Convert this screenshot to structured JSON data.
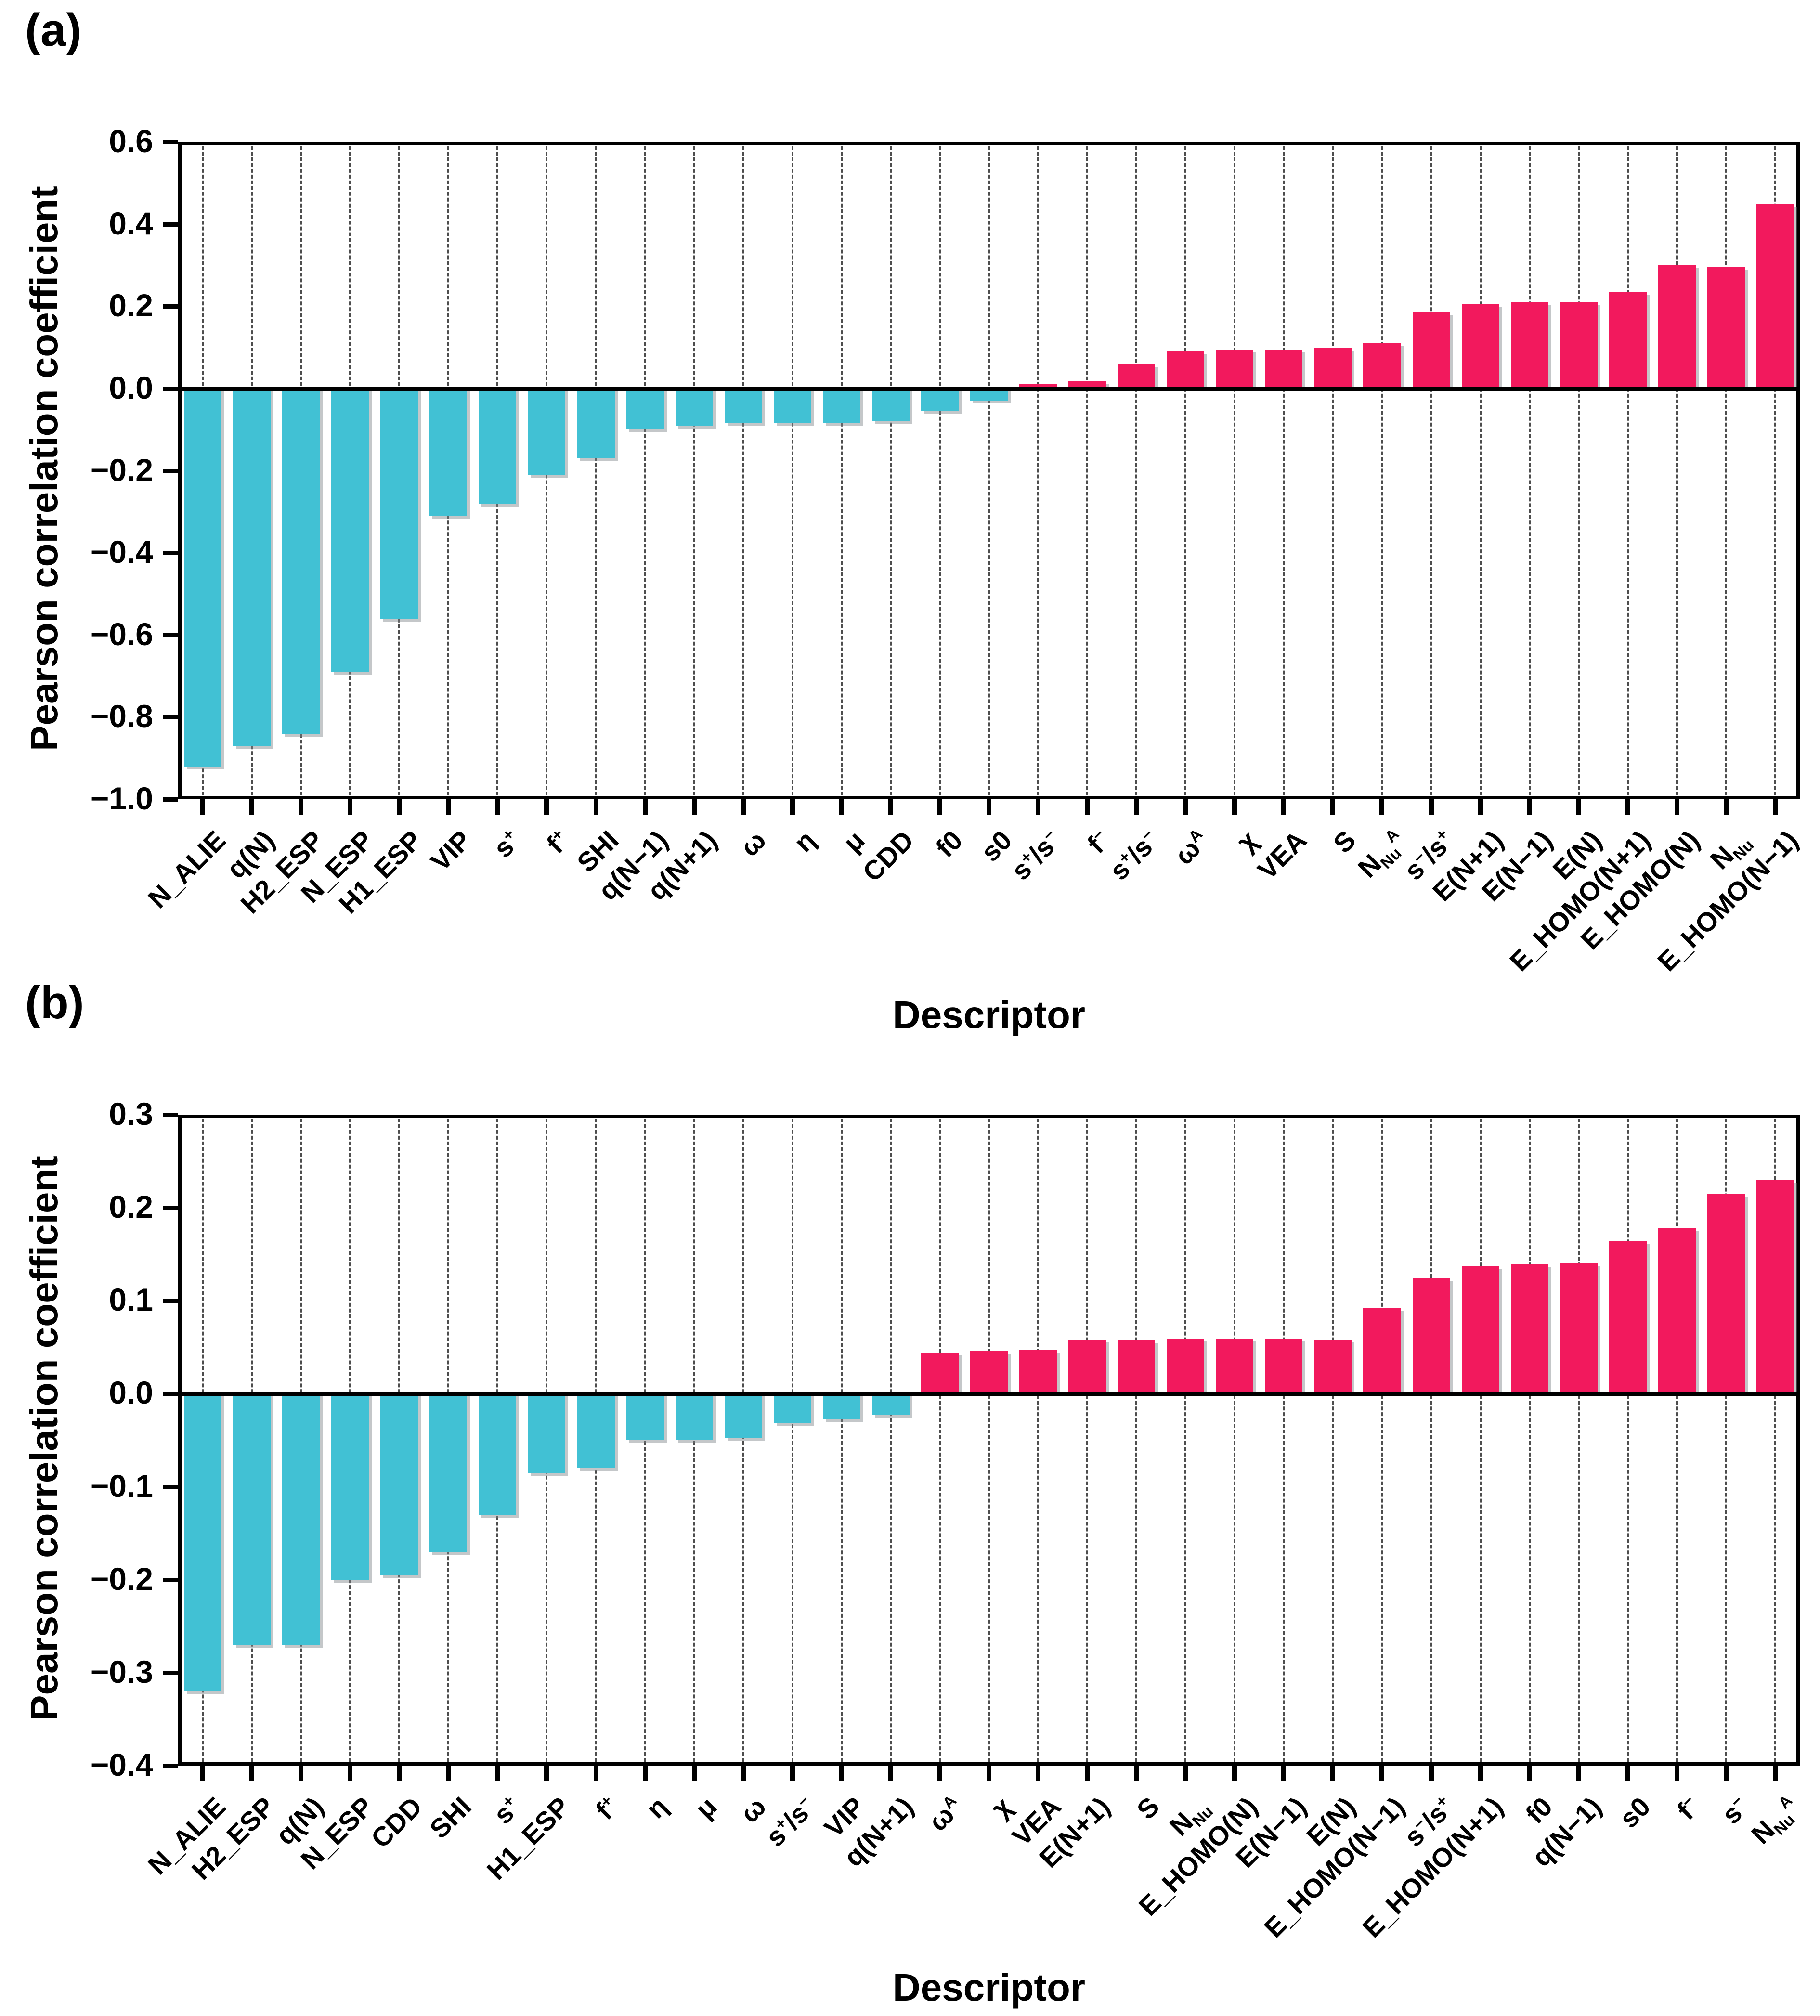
{
  "figure": {
    "background": "#ffffff",
    "grid_color": "#4d4d4d",
    "axis_color": "#000000"
  },
  "chart_data": [
    {
      "type": "bar",
      "panel": "(a)",
      "ylabel": "Pearson correlation coefficient",
      "xlabel": "Descriptor",
      "ylim": [
        -1.0,
        0.6
      ],
      "yticks": [
        "0.6",
        "0.4",
        "0.2",
        "0.0",
        "−0.2",
        "−0.4",
        "−0.6",
        "−0.8",
        "−1.0"
      ],
      "grid": true,
      "legend": "none",
      "positive_color": "#F2195D",
      "negative_color": "#41C1D4",
      "categories": [
        "N_ALIE",
        "q(N)",
        "H2_ESP",
        "N_ESP",
        "H1_ESP",
        "VIP",
        "s+",
        "f+",
        "SHI",
        "q(N−1)",
        "q(N+1)",
        "ω",
        "η",
        "μ",
        "CDD",
        "f0",
        "s0",
        "s+/s−",
        "f−",
        "s+/s−",
        "ω^A",
        "χ",
        "VEA",
        "S",
        "N_Nu^A",
        "s−/s+",
        "E(N+1)",
        "E(N−1)",
        "E(N)",
        "E_HOMO(N+1)",
        "E_HOMO(N)",
        "N_Nu",
        "E_HOMO(N−1)"
      ],
      "values": [
        -0.92,
        -0.87,
        -0.84,
        -0.69,
        -0.56,
        -0.31,
        -0.28,
        -0.21,
        -0.17,
        -0.1,
        -0.09,
        -0.085,
        -0.085,
        -0.085,
        -0.08,
        -0.055,
        -0.03,
        0.012,
        0.018,
        0.06,
        0.09,
        0.095,
        0.095,
        0.1,
        0.11,
        0.185,
        0.205,
        0.21,
        0.21,
        0.235,
        0.3,
        0.295,
        0.45
      ]
    },
    {
      "type": "bar",
      "panel": "(b)",
      "ylabel": "Pearson correlation coefficient",
      "xlabel": "Descriptor",
      "ylim": [
        -0.4,
        0.3
      ],
      "yticks": [
        "0.3",
        "0.2",
        "0.1",
        "0.0",
        "−0.1",
        "−0.2",
        "−0.3",
        "−0.4"
      ],
      "grid": true,
      "legend": "none",
      "positive_color": "#F2195D",
      "negative_color": "#41C1D4",
      "categories": [
        "N_ALIE",
        "H2_ESP",
        "q(N)",
        "N_ESP",
        "CDD",
        "SHI",
        "s+",
        "H1_ESP",
        "f+",
        "η",
        "μ",
        "ω",
        "s+/s−",
        "VIP",
        "q(N+1)",
        "ω^A",
        "χ",
        "VEA",
        "E(N+1)",
        "S",
        "N_Nu",
        "E_HOMO(N)",
        "E(N−1)",
        "E(N)",
        "E_HOMO(N−1)",
        "s−/s+",
        "E_HOMO(N+1)",
        "f0",
        "q(N−1)",
        "s0",
        "f−",
        "s−",
        "N_Nu^A"
      ],
      "values": [
        -0.32,
        -0.27,
        -0.27,
        -0.2,
        -0.195,
        -0.17,
        -0.13,
        -0.085,
        -0.08,
        -0.05,
        -0.05,
        -0.048,
        -0.032,
        -0.027,
        -0.023,
        0.044,
        0.046,
        0.047,
        0.058,
        0.057,
        0.059,
        0.059,
        0.059,
        0.058,
        0.092,
        0.124,
        0.137,
        0.139,
        0.14,
        0.164,
        0.178,
        0.215,
        0.23
      ]
    }
  ]
}
